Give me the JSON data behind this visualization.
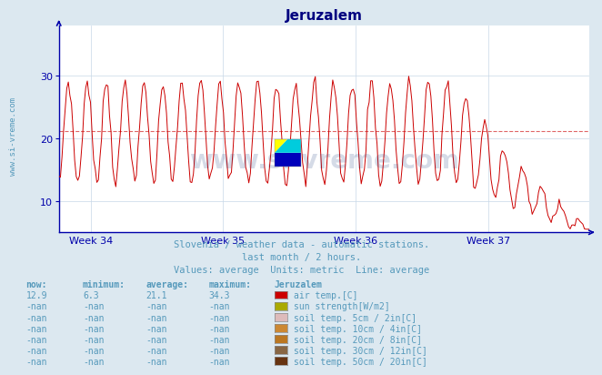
{
  "title": "Jeruzalem",
  "subtitle1": "Slovenia / weather data - automatic stations.",
  "subtitle2": "last month / 2 hours.",
  "subtitle3": "Values: average  Units: metric  Line: average",
  "watermark": "www.si-vreme.com",
  "week_labels": [
    "Week 34",
    "Week 35",
    "Week 36",
    "Week 37"
  ],
  "ylim": [
    5,
    38
  ],
  "yticks": [
    10,
    20,
    30
  ],
  "average_line": 21.1,
  "line_color": "#cc0000",
  "average_line_color": "#cc0000",
  "grid_color": "#c8d8e8",
  "bg_color": "#dce8f0",
  "plot_bg_color": "#ffffff",
  "title_color": "#000080",
  "axis_color": "#0000aa",
  "text_color": "#5599bb",
  "yside_label_color": "#5599bb",
  "legend_items": [
    {
      "label": "air temp.[C]",
      "color": "#cc0000"
    },
    {
      "label": "sun strength[W/m2]",
      "color": "#aaaa00"
    },
    {
      "label": "soil temp. 5cm / 2in[C]",
      "color": "#ddbbbb"
    },
    {
      "label": "soil temp. 10cm / 4in[C]",
      "color": "#cc8833"
    },
    {
      "label": "soil temp. 20cm / 8in[C]",
      "color": "#bb7722"
    },
    {
      "label": "soil temp. 30cm / 12in[C]",
      "color": "#886644"
    },
    {
      "label": "soil temp. 50cm / 20in[C]",
      "color": "#663311"
    }
  ],
  "table_headers": [
    "now:",
    "minimum:",
    "average:",
    "maximum:",
    "Jeruzalem"
  ],
  "table_rows": [
    [
      "12.9",
      "6.3",
      "21.1",
      "34.3"
    ],
    [
      "-nan",
      "-nan",
      "-nan",
      "-nan"
    ],
    [
      "-nan",
      "-nan",
      "-nan",
      "-nan"
    ],
    [
      "-nan",
      "-nan",
      "-nan",
      "-nan"
    ],
    [
      "-nan",
      "-nan",
      "-nan",
      "-nan"
    ],
    [
      "-nan",
      "-nan",
      "-nan",
      "-nan"
    ],
    [
      "-nan",
      "-nan",
      "-nan",
      "-nan"
    ]
  ],
  "n_points": 336,
  "logo_colors": {
    "yellow": "#ffff00",
    "cyan": "#00ccdd",
    "blue": "#0000bb"
  }
}
